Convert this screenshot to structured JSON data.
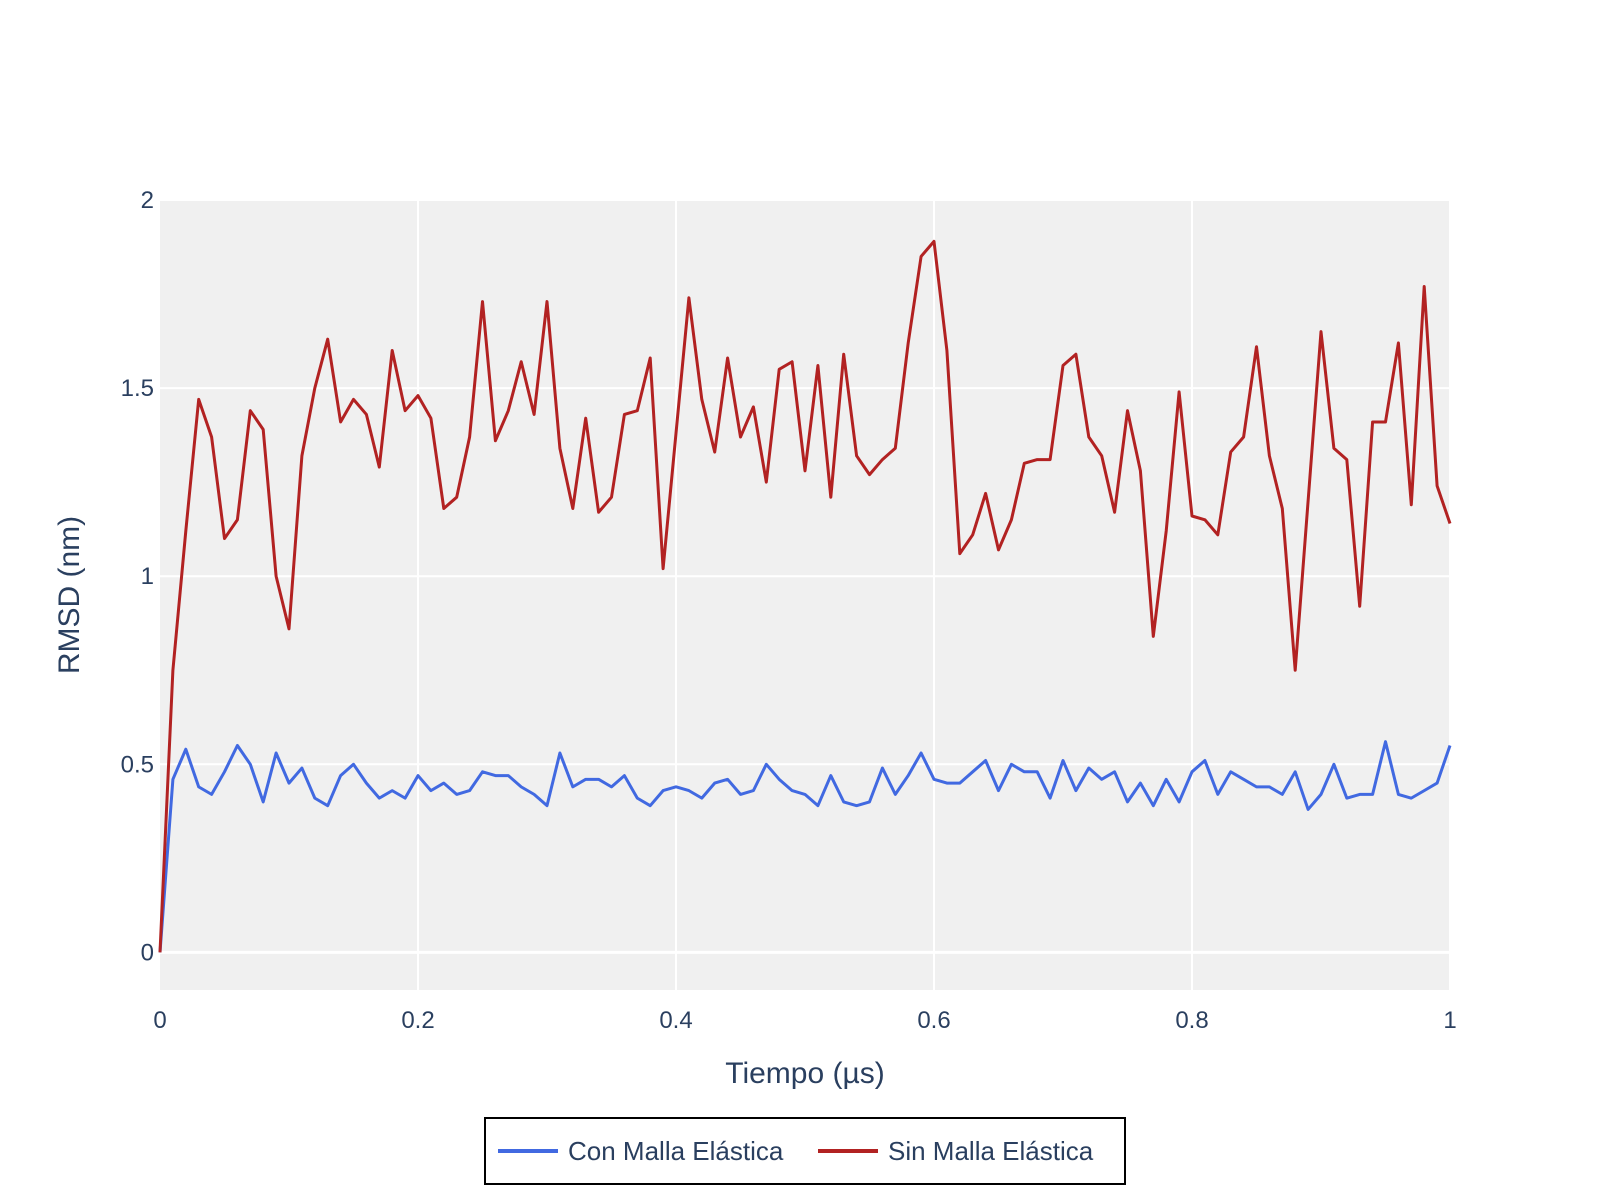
{
  "chart_data": {
    "type": "line",
    "title": "",
    "xlabel": "Tiempo (µs)",
    "ylabel": "RMSD (nm)",
    "xlim": [
      0,
      1
    ],
    "ylim": [
      -0.1,
      2.0
    ],
    "x_ticks": [
      0,
      0.2,
      0.4,
      0.6,
      0.8,
      1
    ],
    "x_tick_labels": [
      "0",
      "0.2",
      "0.4",
      "0.6",
      "0.8",
      "1"
    ],
    "y_ticks": [
      0,
      0.5,
      1,
      1.5,
      2
    ],
    "y_tick_labels": [
      "0",
      "0.5",
      "1",
      "1.5",
      "2"
    ],
    "grid": true,
    "plot_background": "#f0f0f0",
    "legend_position": "bottom-center",
    "x": [
      0.0,
      0.01,
      0.02,
      0.03,
      0.04,
      0.05,
      0.06,
      0.07,
      0.08,
      0.09,
      0.1,
      0.11,
      0.12,
      0.13,
      0.14,
      0.15,
      0.16,
      0.17,
      0.18,
      0.19,
      0.2,
      0.21,
      0.22,
      0.23,
      0.24,
      0.25,
      0.26,
      0.27,
      0.28,
      0.29,
      0.3,
      0.31,
      0.32,
      0.33,
      0.34,
      0.35,
      0.36,
      0.37,
      0.38,
      0.39,
      0.4,
      0.41,
      0.42,
      0.43,
      0.44,
      0.45,
      0.46,
      0.47,
      0.48,
      0.49,
      0.5,
      0.51,
      0.52,
      0.53,
      0.54,
      0.55,
      0.56,
      0.57,
      0.58,
      0.59,
      0.6,
      0.61,
      0.62,
      0.63,
      0.64,
      0.65,
      0.66,
      0.67,
      0.68,
      0.69,
      0.7,
      0.71,
      0.72,
      0.73,
      0.74,
      0.75,
      0.76,
      0.77,
      0.78,
      0.79,
      0.8,
      0.81,
      0.82,
      0.83,
      0.84,
      0.85,
      0.86,
      0.87,
      0.88,
      0.89,
      0.9,
      0.91,
      0.92,
      0.93,
      0.94,
      0.95,
      0.96,
      0.97,
      0.98,
      0.99,
      1.0
    ],
    "series": [
      {
        "name": "Con Malla Elástica",
        "color": "#4169e1",
        "values": [
          0.0,
          0.46,
          0.54,
          0.44,
          0.42,
          0.48,
          0.55,
          0.5,
          0.4,
          0.53,
          0.45,
          0.49,
          0.41,
          0.39,
          0.47,
          0.5,
          0.45,
          0.41,
          0.43,
          0.41,
          0.47,
          0.43,
          0.45,
          0.42,
          0.43,
          0.48,
          0.47,
          0.47,
          0.44,
          0.42,
          0.39,
          0.53,
          0.44,
          0.46,
          0.46,
          0.44,
          0.47,
          0.41,
          0.39,
          0.43,
          0.44,
          0.43,
          0.41,
          0.45,
          0.46,
          0.42,
          0.43,
          0.5,
          0.46,
          0.43,
          0.42,
          0.39,
          0.47,
          0.4,
          0.39,
          0.4,
          0.49,
          0.42,
          0.47,
          0.53,
          0.46,
          0.45,
          0.45,
          0.48,
          0.51,
          0.43,
          0.5,
          0.48,
          0.48,
          0.41,
          0.51,
          0.43,
          0.49,
          0.46,
          0.48,
          0.4,
          0.45,
          0.39,
          0.46,
          0.4,
          0.48,
          0.51,
          0.42,
          0.48,
          0.46,
          0.44,
          0.44,
          0.42,
          0.48,
          0.38,
          0.42,
          0.5,
          0.41,
          0.42,
          0.42,
          0.56,
          0.42,
          0.41,
          0.43,
          0.45,
          0.55
        ]
      },
      {
        "name": "Sin Malla Elástica",
        "color": "#b22222",
        "values": [
          0.0,
          0.75,
          1.12,
          1.47,
          1.37,
          1.1,
          1.15,
          1.44,
          1.39,
          1.0,
          0.86,
          1.32,
          1.5,
          1.63,
          1.41,
          1.47,
          1.43,
          1.29,
          1.6,
          1.44,
          1.48,
          1.42,
          1.18,
          1.21,
          1.37,
          1.73,
          1.36,
          1.44,
          1.57,
          1.43,
          1.73,
          1.34,
          1.18,
          1.42,
          1.17,
          1.21,
          1.43,
          1.44,
          1.58,
          1.02,
          1.38,
          1.74,
          1.47,
          1.33,
          1.58,
          1.37,
          1.45,
          1.25,
          1.55,
          1.57,
          1.28,
          1.56,
          1.21,
          1.59,
          1.32,
          1.27,
          1.31,
          1.34,
          1.62,
          1.85,
          1.89,
          1.6,
          1.06,
          1.11,
          1.22,
          1.07,
          1.15,
          1.3,
          1.31,
          1.31,
          1.56,
          1.59,
          1.37,
          1.32,
          1.17,
          1.44,
          1.28,
          0.84,
          1.12,
          1.49,
          1.16,
          1.15,
          1.11,
          1.33,
          1.37,
          1.61,
          1.32,
          1.18,
          0.75,
          1.2,
          1.65,
          1.34,
          1.31,
          0.92,
          1.41,
          1.41,
          1.62,
          1.19,
          1.77,
          1.24,
          1.14
        ]
      }
    ]
  }
}
